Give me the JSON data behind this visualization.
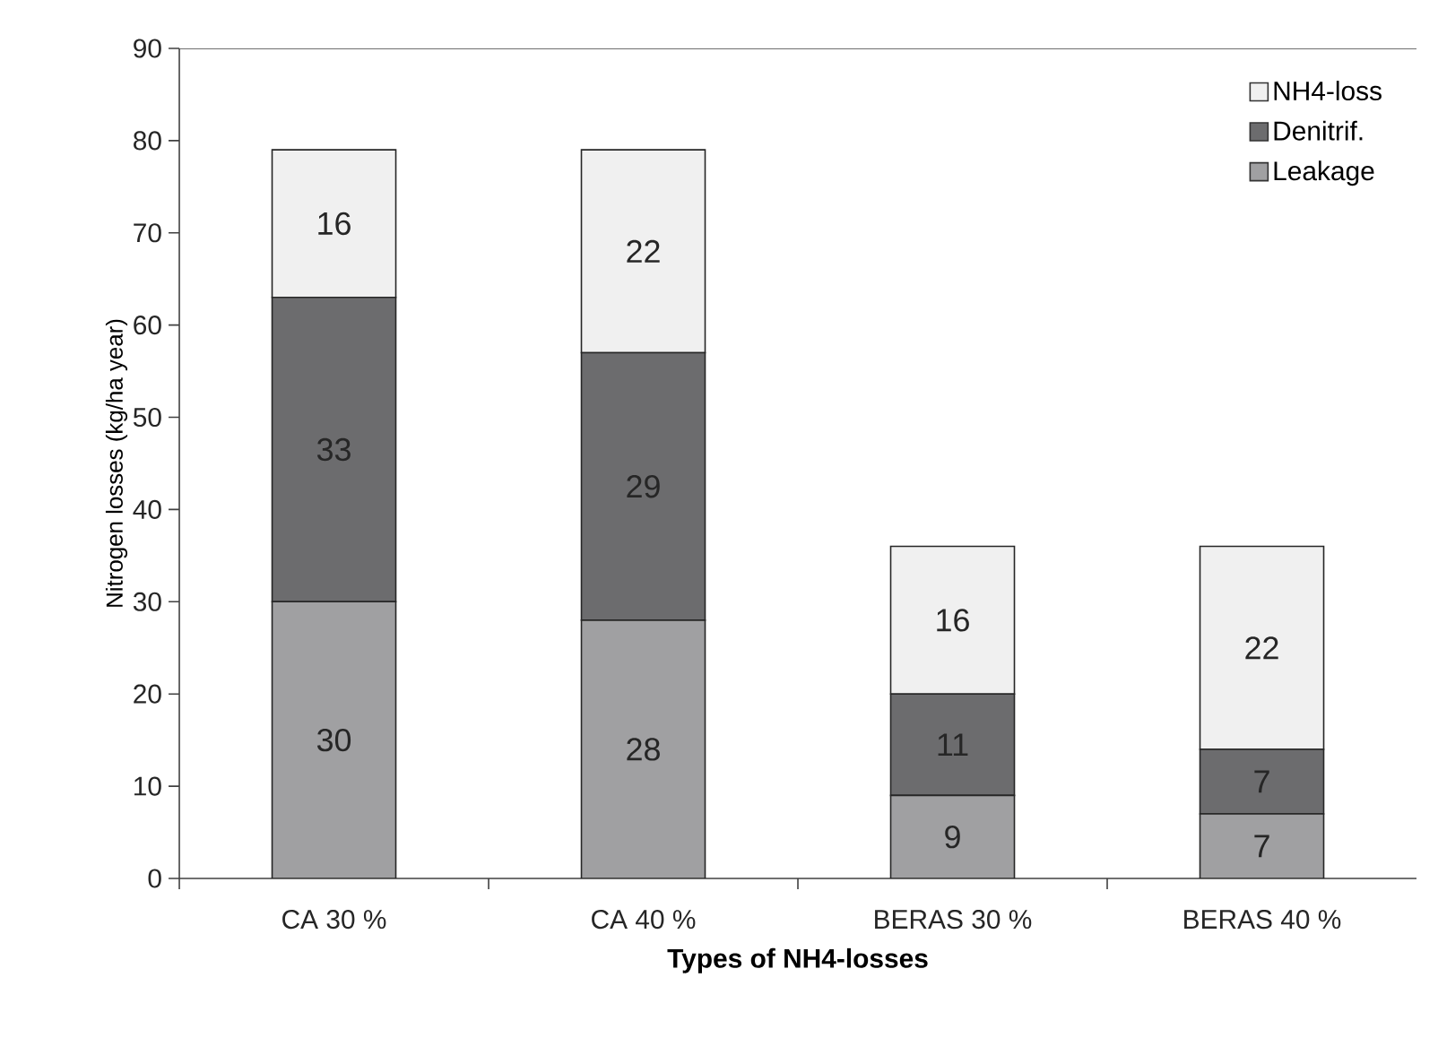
{
  "chart_data": {
    "type": "bar",
    "stacked": true,
    "xlabel": "Types of NH4-losses",
    "ylabel": "Nitrogen losses (kg/ha year)",
    "categories": [
      "CA 30 %",
      "CA 40 %",
      "BERAS 30 %",
      "BERAS 40 %"
    ],
    "series": [
      {
        "name": "Leakage",
        "color": "#a0a0a2",
        "values": [
          30,
          28,
          9,
          7
        ]
      },
      {
        "name": "Denitrif.",
        "color": "#6c6c6e",
        "values": [
          33,
          29,
          11,
          7
        ]
      },
      {
        "name": "NH4-loss",
        "color": "#f0f0f0",
        "values": [
          16,
          22,
          16,
          22
        ]
      }
    ],
    "ylim": [
      0,
      90
    ],
    "yticks": [
      0,
      10,
      20,
      30,
      40,
      50,
      60,
      70,
      80,
      90
    ],
    "data_labels": true,
    "legend": "top right"
  }
}
